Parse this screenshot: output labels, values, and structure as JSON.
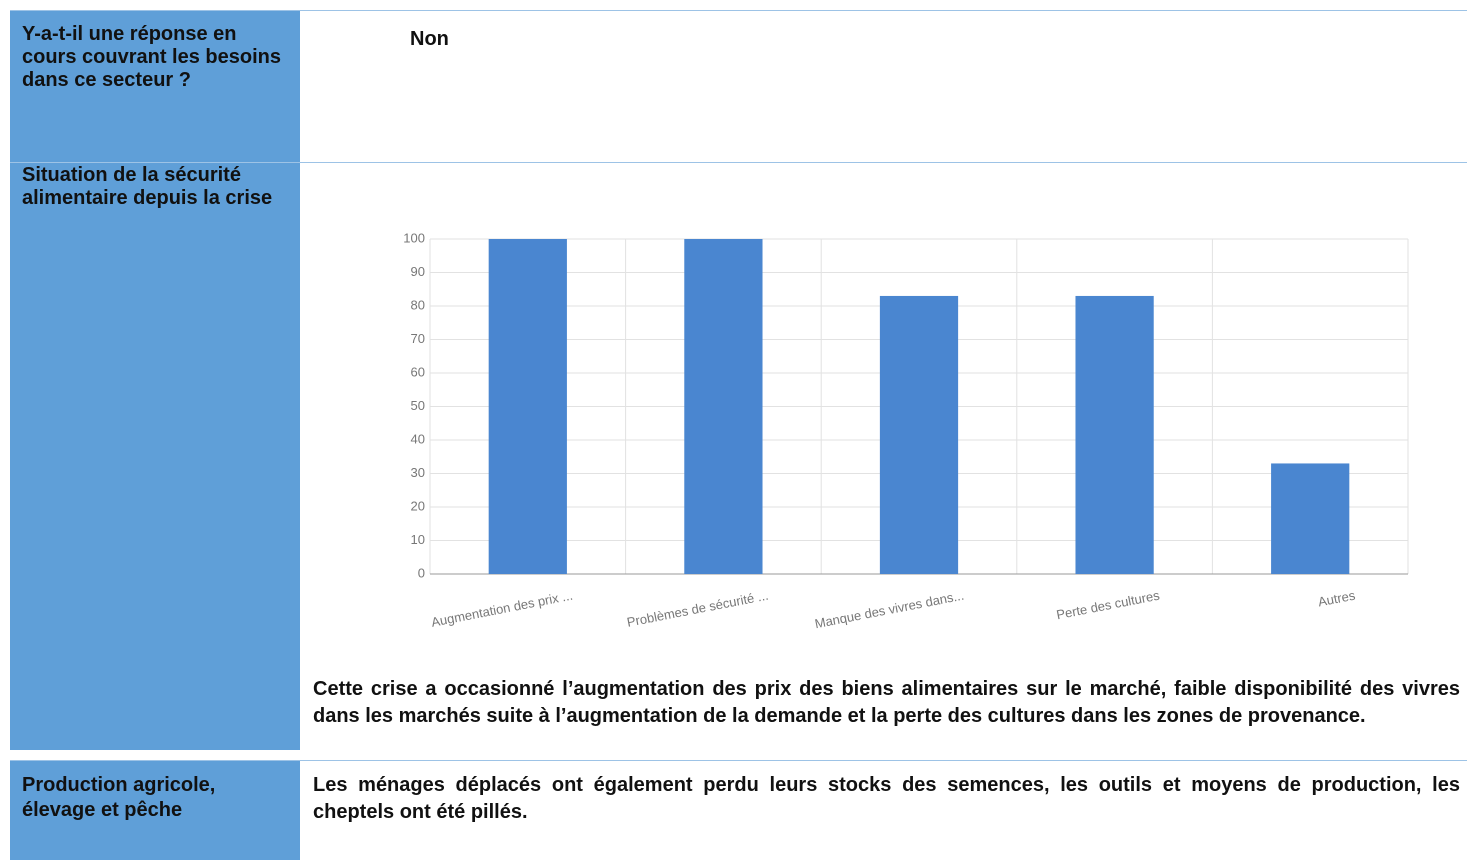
{
  "table": {
    "rows": [
      {
        "label": "Y-a-t-il une réponse en cours couvrant les besoins dans ce secteur ?",
        "text": "Non"
      },
      {
        "label": "Situation de la sécurité alimentaire depuis la crise",
        "text": "Cette crise a occasionné l’augmentation des prix des biens alimentaires sur le marché, faible disponibilité des vivres dans les marchés suite à l’augmentation de la demande et la perte des cultures dans les zones de provenance."
      },
      {
        "label": "Production agricole, élevage et pêche",
        "text": "Les ménages déplacés ont également perdu leurs stocks des semences, les outils et moyens de production, les cheptels ont été pillés."
      }
    ]
  },
  "chart_data": {
    "type": "bar",
    "categories": [
      "Augmentation des prix ...",
      "Problèmes de sécurité ...",
      "Manque des vivres dans...",
      "Perte des cultures",
      "Autres"
    ],
    "values": [
      100,
      100,
      83,
      83,
      33
    ],
    "color": "#4a86d0",
    "ylim": [
      0,
      100
    ],
    "yticks": [
      0,
      10,
      20,
      30,
      40,
      50,
      60,
      70,
      80,
      90,
      100
    ],
    "grid": true
  }
}
